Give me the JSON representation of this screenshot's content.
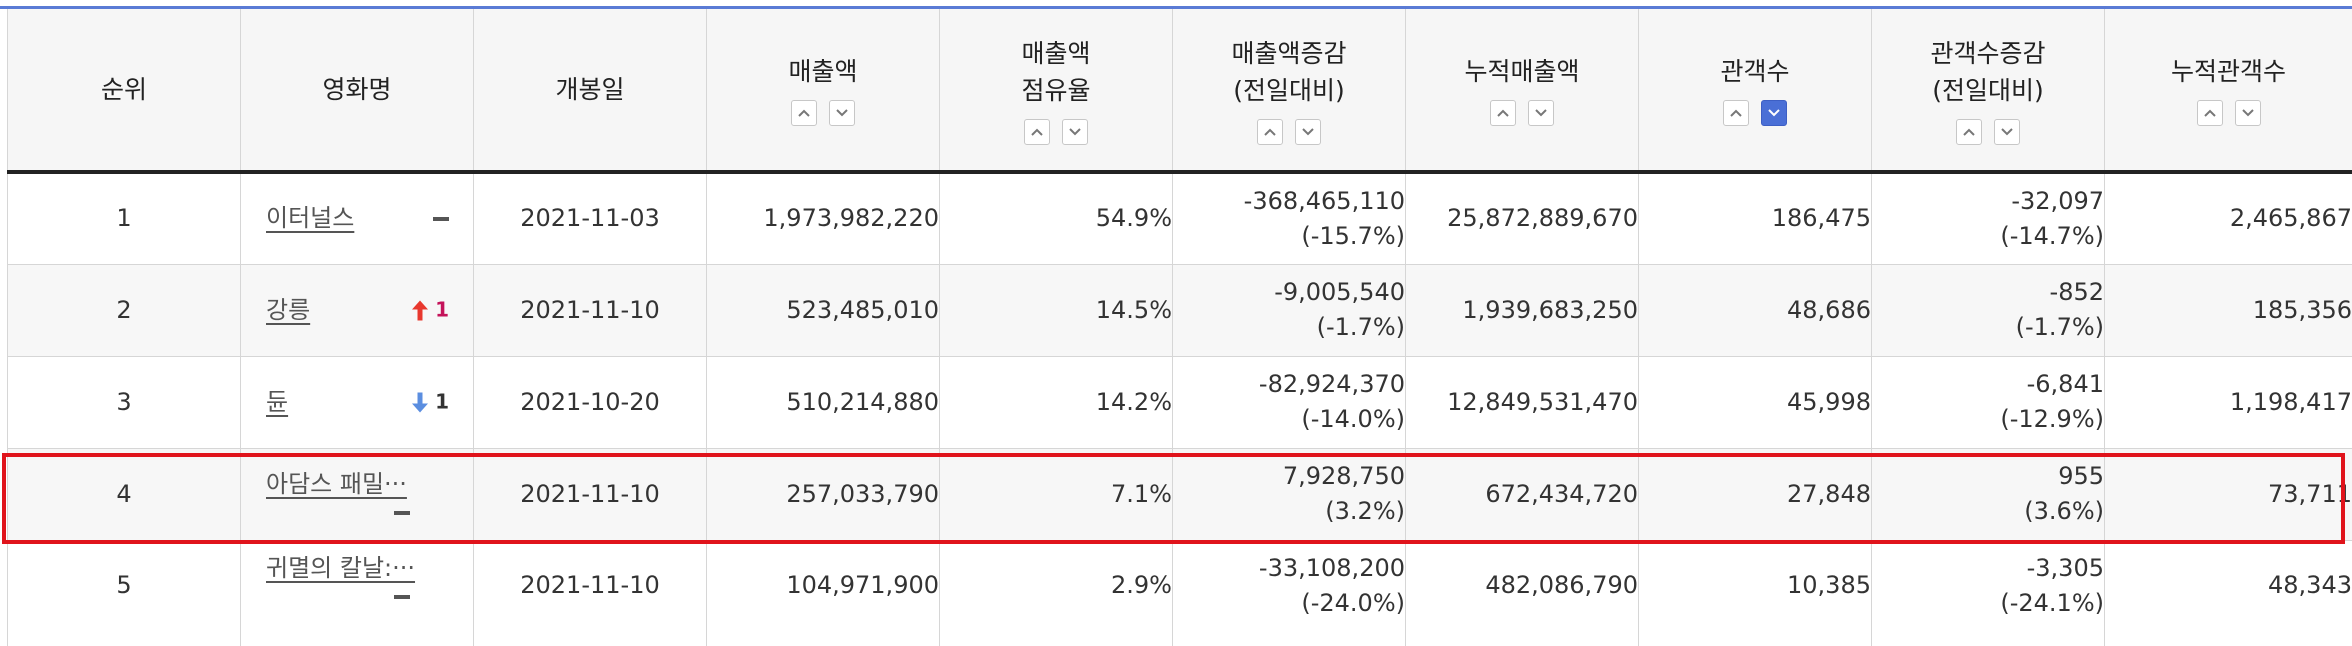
{
  "headers": {
    "rank": "순위",
    "title": "영화명",
    "release": "개봉일",
    "sales": "매출액",
    "share_l1": "매출액",
    "share_l2": "점유율",
    "sales_change_l1": "매출액증감",
    "sales_change_l2": "(전일대비)",
    "cum_sales": "누적매출액",
    "audience": "관객수",
    "aud_change_l1": "관객수증감",
    "aud_change_l2": "(전일대비)",
    "cum_audience": "누적관객수"
  },
  "sort_icons": {
    "up": "sort-ascending-icon",
    "down": "sort-descending-icon",
    "active_column": "audience",
    "active_direction": "down"
  },
  "colors": {
    "accent": "#4a6fd6",
    "rank_up": "#e8382e",
    "rank_up_number": "#c4135a",
    "rank_down": "#5b8ee0",
    "highlight": "#e0141c"
  },
  "rows": [
    {
      "rank": "1",
      "title": "이터널스",
      "change": "",
      "release": "2021-11-03",
      "sales": "1,973,982,220",
      "share": "54.9%",
      "sales_change": "-368,465,110",
      "sales_change_pct": "(-15.7%)",
      "cum_sales": "25,872,889,670",
      "audience": "186,475",
      "aud_change": "-32,097",
      "aud_change_pct": "(-14.7%)",
      "cum_audience": "2,465,867"
    },
    {
      "rank": "2",
      "title": "강릉",
      "change": "1",
      "release": "2021-11-10",
      "sales": "523,485,010",
      "share": "14.5%",
      "sales_change": "-9,005,540",
      "sales_change_pct": "(-1.7%)",
      "cum_sales": "1,939,683,250",
      "audience": "48,686",
      "aud_change": "-852",
      "aud_change_pct": "(-1.7%)",
      "cum_audience": "185,356"
    },
    {
      "rank": "3",
      "title": "듄",
      "change": "1",
      "release": "2021-10-20",
      "sales": "510,214,880",
      "share": "14.2%",
      "sales_change": "-82,924,370",
      "sales_change_pct": "(-14.0%)",
      "cum_sales": "12,849,531,470",
      "audience": "45,998",
      "aud_change": "-6,841",
      "aud_change_pct": "(-12.9%)",
      "cum_audience": "1,198,417"
    },
    {
      "rank": "4",
      "title": "아담스 패밀···",
      "change": "",
      "release": "2021-11-10",
      "sales": "257,033,790",
      "share": "7.1%",
      "sales_change": "7,928,750",
      "sales_change_pct": "(3.2%)",
      "cum_sales": "672,434,720",
      "audience": "27,848",
      "aud_change": "955",
      "aud_change_pct": "(3.6%)",
      "cum_audience": "73,711"
    },
    {
      "rank": "5",
      "title": "귀멸의 칼날:···",
      "change": "",
      "release": "2021-11-10",
      "sales": "104,971,900",
      "share": "2.9%",
      "sales_change": "-33,108,200",
      "sales_change_pct": "(-24.0%)",
      "cum_sales": "482,086,790",
      "audience": "10,385",
      "aud_change": "-3,305",
      "aud_change_pct": "(-24.1%)",
      "cum_audience": "48,343"
    }
  ]
}
